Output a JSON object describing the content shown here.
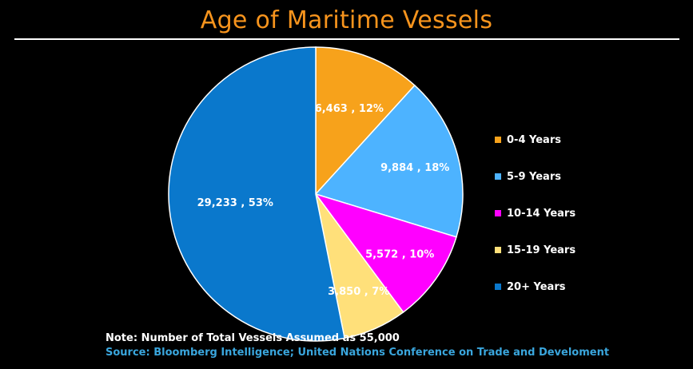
{
  "title": "Age of Maritime Vessels",
  "note": "Note: Number of Total Vessels Assumed as 55,000",
  "source": "Source: Bloomberg Intelligence; United Nations Conference on Trade and Develoment",
  "chart_data": {
    "type": "pie",
    "title": "Age of Maritime Vessels",
    "categories": [
      "0-4 Years",
      "5-9 Years",
      "10-14 Years",
      "15-19 Years",
      "20+ Years"
    ],
    "values": [
      6463,
      9884,
      5572,
      3850,
      29233
    ],
    "percents": [
      12,
      18,
      10,
      7,
      53
    ],
    "labels": [
      "6,463 , 12%",
      "9,884 , 18%",
      "5,572 , 10%",
      "3,850 , 7%",
      "29,233 , 53%"
    ],
    "colors": [
      "#f7a21b",
      "#4db3ff",
      "#ff00ff",
      "#ffe07a",
      "#0a78cc"
    ],
    "legend_position": "right"
  },
  "legend": [
    {
      "label": "0-4 Years",
      "color": "#f7a21b"
    },
    {
      "label": "5-9 Years",
      "color": "#4db3ff"
    },
    {
      "label": "10-14 Years",
      "color": "#ff00ff"
    },
    {
      "label": "15-19 Years",
      "color": "#ffe07a"
    },
    {
      "label": "20+ Years",
      "color": "#0a78cc"
    }
  ]
}
